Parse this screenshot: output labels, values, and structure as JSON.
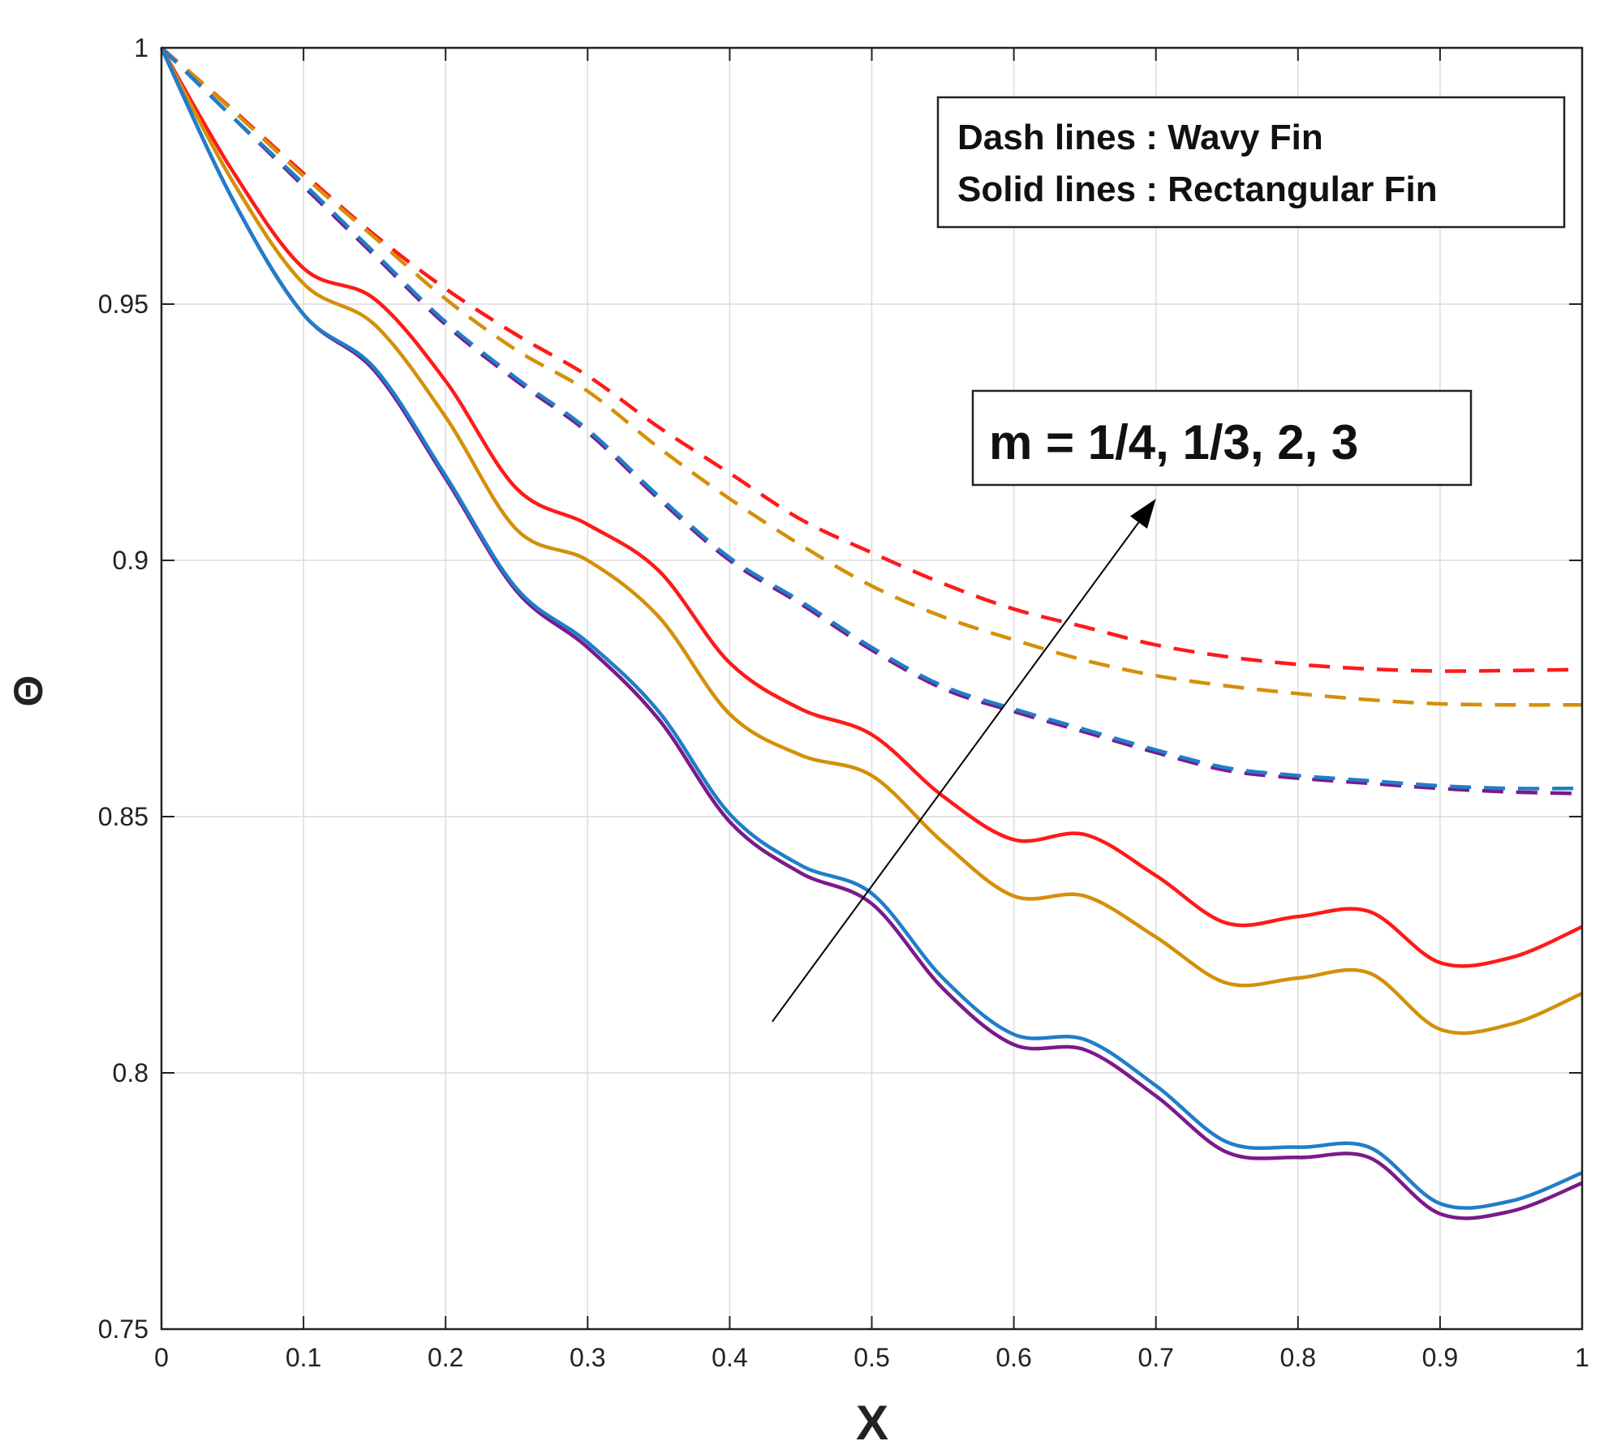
{
  "chart_data": {
    "type": "line",
    "title": "",
    "xlabel": "X",
    "ylabel": "Θ",
    "xlim": [
      0,
      1
    ],
    "ylim": [
      0.75,
      1
    ],
    "grid": true,
    "xticks": [
      0,
      0.1,
      0.2,
      0.3,
      0.4,
      0.5,
      0.6,
      0.7,
      0.8,
      0.9,
      1
    ],
    "xtick_labels": [
      "0",
      "0.1",
      "0.2",
      "0.3",
      "0.4",
      "0.5",
      "0.6",
      "0.7",
      "0.8",
      "0.9",
      "1"
    ],
    "yticks": [
      0.75,
      0.8,
      0.85,
      0.9,
      0.95,
      1
    ],
    "ytick_labels": [
      "0.75",
      "0.8",
      "0.85",
      "0.9",
      "0.95",
      "1"
    ],
    "legend": {
      "placement": "top-right",
      "lines": [
        "Dash lines : Wavy Fin",
        "Solid lines : Rectangular Fin"
      ]
    },
    "annotation": {
      "text": "m = 1/4, 1/3, 2, 3",
      "arrow_from": [
        0.43,
        0.81
      ],
      "arrow_to": [
        0.7,
        0.912
      ]
    },
    "x": [
      0,
      0.05,
      0.1,
      0.15,
      0.2,
      0.25,
      0.3,
      0.35,
      0.4,
      0.45,
      0.5,
      0.55,
      0.6,
      0.65,
      0.7,
      0.75,
      0.8,
      0.85,
      0.9,
      0.95,
      1.0
    ],
    "series": [
      {
        "name": "Wavy Fin m=1/4",
        "style": "dash",
        "color": "#ff1a1a",
        "values": [
          1.0,
          0.988,
          0.9755,
          0.9635,
          0.953,
          0.944,
          0.936,
          0.926,
          0.917,
          0.908,
          0.9015,
          0.8955,
          0.8905,
          0.887,
          0.8835,
          0.8812,
          0.8797,
          0.8788,
          0.8784,
          0.8785,
          0.8787
        ]
      },
      {
        "name": "Wavy Fin m=1/3",
        "style": "dash",
        "color": "#d4900a",
        "values": [
          1.0,
          0.9878,
          0.975,
          0.963,
          0.951,
          0.941,
          0.933,
          0.922,
          0.912,
          0.903,
          0.895,
          0.889,
          0.8845,
          0.8805,
          0.8775,
          0.8755,
          0.874,
          0.8728,
          0.872,
          0.8718,
          0.8718
        ]
      },
      {
        "name": "Wavy Fin m=2",
        "style": "dash",
        "color": "#7b1a8a",
        "values": [
          1.0,
          0.9865,
          0.973,
          0.9595,
          0.946,
          0.935,
          0.925,
          0.912,
          0.9,
          0.8915,
          0.8825,
          0.875,
          0.8705,
          0.8665,
          0.8625,
          0.859,
          0.8575,
          0.8565,
          0.8555,
          0.8548,
          0.8545
        ]
      },
      {
        "name": "Wavy Fin m=3",
        "style": "dash",
        "color": "#1f7ec9",
        "values": [
          1.0,
          0.9865,
          0.9735,
          0.96,
          0.9465,
          0.9355,
          0.9255,
          0.9125,
          0.9005,
          0.892,
          0.883,
          0.8755,
          0.871,
          0.867,
          0.863,
          0.8595,
          0.858,
          0.857,
          0.856,
          0.8555,
          0.8555
        ]
      },
      {
        "name": "Rectangular Fin m=1/4",
        "style": "solid",
        "color": "#ff1a1a",
        "values": [
          1.0,
          0.976,
          0.957,
          0.951,
          0.935,
          0.914,
          0.907,
          0.898,
          0.88,
          0.871,
          0.866,
          0.854,
          0.8455,
          0.8465,
          0.8385,
          0.8292,
          0.8305,
          0.8315,
          0.8215,
          0.8225,
          0.8285
        ]
      },
      {
        "name": "Rectangular Fin m=1/3",
        "style": "solid",
        "color": "#d4900a",
        "values": [
          1.0,
          0.974,
          0.954,
          0.946,
          0.928,
          0.906,
          0.9,
          0.889,
          0.87,
          0.862,
          0.858,
          0.845,
          0.8345,
          0.8345,
          0.8265,
          0.8175,
          0.8185,
          0.8195,
          0.8085,
          0.8095,
          0.8155
        ]
      },
      {
        "name": "Rectangular Fin m=2",
        "style": "solid",
        "color": "#7b1a8a",
        "values": [
          1.0,
          0.9705,
          0.948,
          0.937,
          0.916,
          0.894,
          0.883,
          0.869,
          0.849,
          0.839,
          0.833,
          0.8165,
          0.8055,
          0.8045,
          0.7955,
          0.7845,
          0.7835,
          0.7835,
          0.7725,
          0.773,
          0.7785
        ]
      },
      {
        "name": "Rectangular Fin m=3",
        "style": "solid",
        "color": "#1f7ec9",
        "values": [
          1.0,
          0.9705,
          0.948,
          0.9375,
          0.9165,
          0.8945,
          0.884,
          0.8705,
          0.8505,
          0.8405,
          0.835,
          0.8185,
          0.8075,
          0.8065,
          0.7975,
          0.7865,
          0.7855,
          0.7855,
          0.7745,
          0.775,
          0.7805
        ]
      }
    ]
  }
}
